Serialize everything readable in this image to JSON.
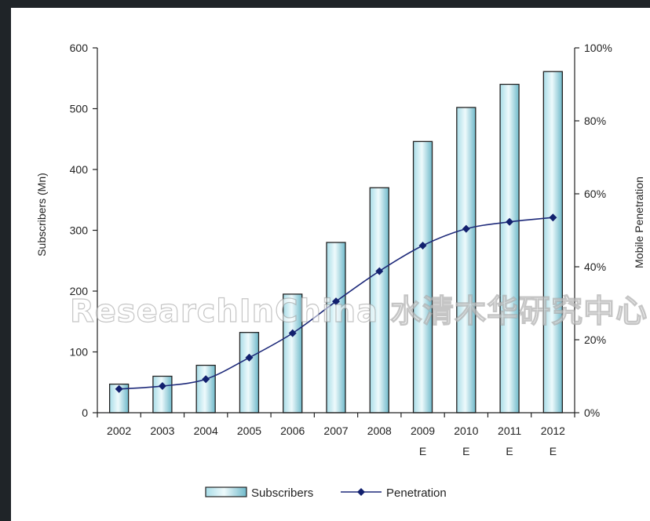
{
  "watermark": "ResearchInChina 水清木华研究中心",
  "chart_data": {
    "type": "bar",
    "categories": [
      "2002",
      "2003",
      "2004",
      "2005",
      "2006",
      "2007",
      "2008",
      "2009\nE",
      "2010\nE",
      "2011\nE",
      "2012\nE"
    ],
    "ylabel": "Subscribers (Mn)",
    "y2label": "Mobile Penetration",
    "ylim": [
      0,
      600
    ],
    "y2lim": [
      0,
      100
    ],
    "yticks": [
      "0",
      "100",
      "200",
      "300",
      "400",
      "500",
      "600"
    ],
    "y2ticks": [
      "0%",
      "20%",
      "40%",
      "60%",
      "80%",
      "100%"
    ],
    "series": [
      {
        "name": "Subscribers",
        "type": "bar",
        "axis": "left",
        "values": [
          47,
          60,
          78,
          132,
          195,
          280,
          370,
          446,
          502,
          540,
          561
        ]
      },
      {
        "name": "Penetration",
        "type": "line",
        "axis": "right",
        "values": [
          6.5,
          7.3,
          9.2,
          15.1,
          21.8,
          30.5,
          38.8,
          45.8,
          50.4,
          52.3,
          53.5
        ]
      }
    ],
    "legend": "bottom-center",
    "grid": false,
    "colors": {
      "bar_fill_light": "#eaf8fb",
      "bar_fill_dark": "#7fc7d6",
      "bar_edge": "#222222",
      "line": "#1e2a7a",
      "marker": "#12206e"
    }
  }
}
